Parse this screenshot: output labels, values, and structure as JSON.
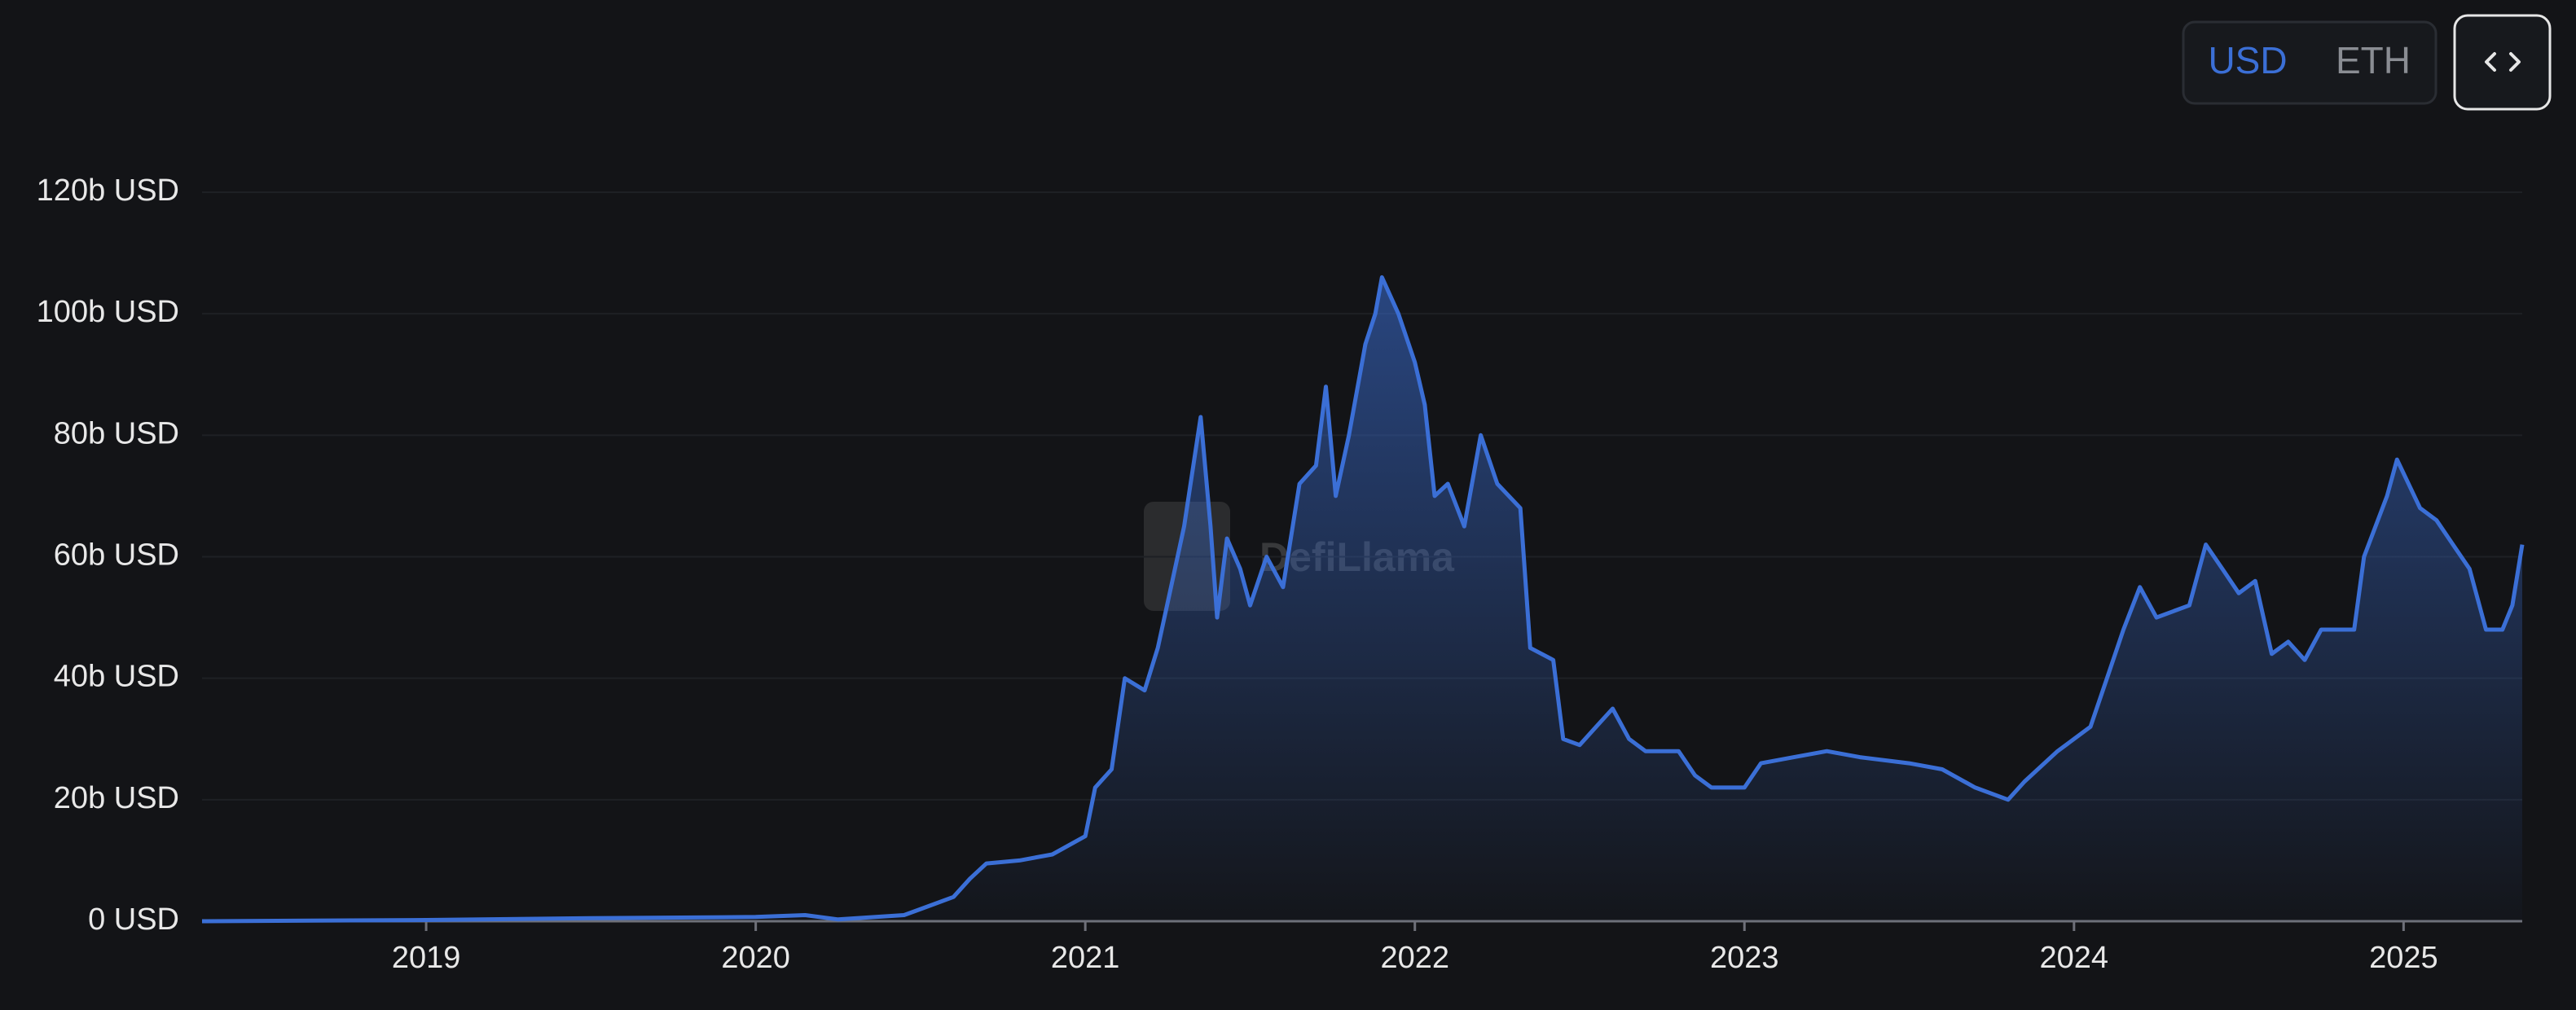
{
  "chart_data": {
    "type": "area",
    "toggle": [
      "USD",
      "ETH"
    ],
    "watermark": "DefiLlama",
    "color": "#3b6fd6",
    "grid": true,
    "xlim": [
      2018.32,
      2025.36
    ],
    "xticks": [
      2019,
      2020,
      2021,
      2022,
      2023,
      2024,
      2025
    ],
    "ylim": [
      0,
      120
    ],
    "yticks": [
      {
        "value": 0,
        "label": "0 USD"
      },
      {
        "value": 20,
        "label": "20b USD"
      },
      {
        "value": 40,
        "label": "40b USD"
      },
      {
        "value": 60,
        "label": "60b USD"
      },
      {
        "value": 80,
        "label": "80b USD"
      },
      {
        "value": 100,
        "label": "100b USD"
      },
      {
        "value": 120,
        "label": "120b USD"
      }
    ],
    "x": [
      2018.32,
      2019.0,
      2019.5,
      2020.0,
      2020.15,
      2020.25,
      2020.45,
      2020.5,
      2020.6,
      2020.65,
      2020.7,
      2020.8,
      2020.9,
      2021.0,
      2021.03,
      2021.08,
      2021.12,
      2021.18,
      2021.22,
      2021.26,
      2021.3,
      2021.35,
      2021.38,
      2021.4,
      2021.43,
      2021.47,
      2021.5,
      2021.55,
      2021.6,
      2021.65,
      2021.7,
      2021.73,
      2021.76,
      2021.8,
      2021.85,
      2021.88,
      2021.9,
      2021.95,
      2022.0,
      2022.03,
      2022.06,
      2022.1,
      2022.15,
      2022.2,
      2022.25,
      2022.32,
      2022.35,
      2022.42,
      2022.45,
      2022.5,
      2022.55,
      2022.6,
      2022.65,
      2022.7,
      2022.8,
      2022.85,
      2022.9,
      2023.0,
      2023.05,
      2023.15,
      2023.25,
      2023.35,
      2023.5,
      2023.6,
      2023.7,
      2023.8,
      2023.85,
      2023.95,
      2024.0,
      2024.05,
      2024.1,
      2024.15,
      2024.2,
      2024.25,
      2024.35,
      2024.4,
      2024.45,
      2024.5,
      2024.55,
      2024.6,
      2024.65,
      2024.7,
      2024.75,
      2024.85,
      2024.88,
      2024.95,
      2024.98,
      2025.05,
      2025.1,
      2025.15,
      2025.2,
      2025.25,
      2025.3,
      2025.33,
      2025.36
    ],
    "values": [
      0,
      0.2,
      0.5,
      0.7,
      1.0,
      0.3,
      1.0,
      2.0,
      4,
      7,
      9.5,
      10,
      11,
      14,
      22,
      25,
      40,
      38,
      45,
      55,
      65,
      83,
      65,
      50,
      63,
      58,
      52,
      60,
      55,
      72,
      75,
      88,
      70,
      80,
      95,
      100,
      106,
      100,
      92,
      85,
      70,
      72,
      65,
      80,
      72,
      68,
      45,
      43,
      30,
      29,
      32,
      35,
      30,
      28,
      28,
      24,
      22,
      22,
      26,
      27,
      28,
      27,
      26,
      25,
      22,
      20,
      23,
      28,
      30,
      32,
      40,
      48,
      55,
      50,
      52,
      62,
      58,
      54,
      56,
      44,
      46,
      43,
      48,
      48,
      60,
      70,
      76,
      68,
      66,
      62,
      58,
      48,
      48,
      52,
      62
    ]
  }
}
